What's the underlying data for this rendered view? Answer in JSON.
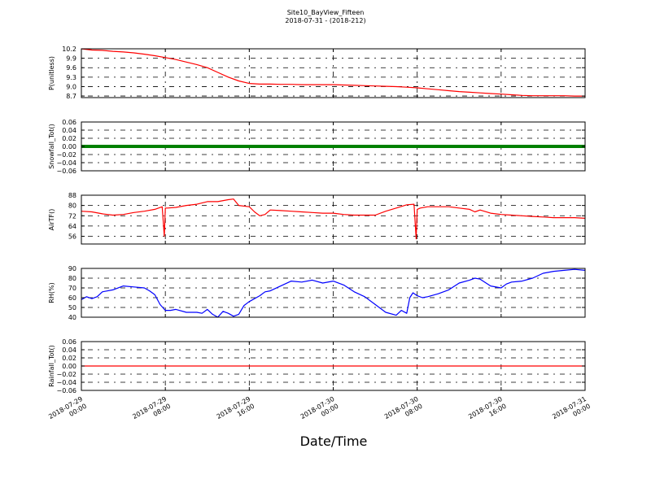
{
  "header": {
    "title": "Site10_BayView_Fifteen",
    "subtitle": "2018-07-31 - (2018-212)"
  },
  "xlabel": "Date/Time",
  "colors": {
    "red": "#ff0000",
    "green": "#008000",
    "blue": "#0000ff",
    "grid": "#000000"
  },
  "chart_data": [
    {
      "type": "line",
      "ylabel": "P(unitless)",
      "ylim": [
        8.65,
        10.2
      ],
      "yticks": [
        "10.2",
        "9.9",
        "9.6",
        "9.3",
        "9.0",
        "8.7"
      ],
      "ytick_values": [
        10.2,
        9.9,
        9.6,
        9.3,
        9.0,
        8.7
      ],
      "xlim": [
        0,
        48
      ],
      "xticks": [
        "2018-07-29\n00:00",
        "2018-07-29\n08:00",
        "2018-07-29\n16:00",
        "2018-07-30\n00:00",
        "2018-07-30\n08:00",
        "2018-07-30\n16:00",
        "2018-07-31\n00:00"
      ],
      "grid": true,
      "series": [
        {
          "color": "#ff0000",
          "x": [
            0,
            1,
            2,
            3,
            4,
            5,
            6,
            7,
            8,
            9,
            10,
            11,
            12,
            13,
            14,
            15,
            16,
            17,
            18,
            19,
            20,
            21,
            22,
            23,
            24,
            25,
            26,
            27,
            28,
            29,
            30,
            31,
            32,
            33,
            34,
            35,
            36,
            37,
            38,
            39,
            40,
            41,
            42,
            43,
            44,
            45,
            46,
            47,
            48
          ],
          "y": [
            10.2,
            10.16,
            10.15,
            10.12,
            10.1,
            10.07,
            10.03,
            9.98,
            9.92,
            9.86,
            9.78,
            9.7,
            9.6,
            9.45,
            9.3,
            9.18,
            9.1,
            9.08,
            9.08,
            9.07,
            9.07,
            9.06,
            9.06,
            9.06,
            9.06,
            9.05,
            9.04,
            9.03,
            9.02,
            9.01,
            9.0,
            8.98,
            8.96,
            8.93,
            8.9,
            8.87,
            8.84,
            8.82,
            8.8,
            8.78,
            8.76,
            8.74,
            8.72,
            8.71,
            8.71,
            8.71,
            8.71,
            8.7,
            8.7
          ]
        }
      ]
    },
    {
      "type": "line",
      "ylabel": "Snowfall_Tot()",
      "ylim": [
        -0.06,
        0.06
      ],
      "yticks": [
        "0.06",
        "0.04",
        "0.02",
        "0.00",
        "−0.02",
        "−0.04",
        "−0.06"
      ],
      "ytick_values": [
        0.06,
        0.04,
        0.02,
        0.0,
        -0.02,
        -0.04,
        -0.06
      ],
      "xlim": [
        0,
        48
      ],
      "grid": true,
      "series": [
        {
          "color": "#008000",
          "x": [
            0,
            48
          ],
          "y": [
            0,
            0
          ],
          "marker": "dense"
        }
      ]
    },
    {
      "type": "line",
      "ylabel": "AirTF()",
      "ylim": [
        50,
        88
      ],
      "yticks": [
        "88",
        "80",
        "72",
        "64",
        "56"
      ],
      "ytick_values": [
        88,
        80,
        72,
        64,
        56
      ],
      "xlim": [
        0,
        48
      ],
      "grid": true,
      "series": [
        {
          "color": "#ff0000",
          "x": [
            0,
            1,
            2,
            3,
            4,
            5,
            6,
            7,
            7.7,
            7.9,
            8.0,
            8.2,
            9,
            10,
            11,
            12,
            13,
            14,
            14.5,
            15,
            16,
            16.5,
            17,
            17.5,
            18,
            19,
            20,
            21,
            22,
            23,
            24,
            25,
            26,
            27,
            28,
            29,
            30,
            31,
            31.7,
            31.9,
            32.0,
            32.3,
            33,
            34,
            35,
            36,
            37,
            37.5,
            38,
            39,
            40,
            41,
            42,
            43,
            44,
            45,
            46,
            47,
            48
          ],
          "y": [
            75.5,
            75,
            73.5,
            72.5,
            73,
            74.5,
            75.5,
            77,
            79,
            56,
            78,
            78,
            78.5,
            80,
            81,
            83,
            83,
            84.5,
            85,
            80,
            79,
            75,
            72,
            73,
            76.5,
            76,
            75.5,
            75,
            74.5,
            74,
            74,
            73,
            72.5,
            72.5,
            72.5,
            75.5,
            78,
            80.5,
            81,
            54,
            77,
            78,
            79,
            79,
            79,
            78,
            77,
            75,
            76.5,
            74,
            73,
            72.5,
            72,
            71.5,
            71,
            70.5,
            70.5,
            70.5,
            70
          ]
        }
      ]
    },
    {
      "type": "line",
      "ylabel": "RH(%)",
      "ylim": [
        40,
        90
      ],
      "yticks": [
        "90",
        "80",
        "70",
        "60",
        "50",
        "40"
      ],
      "ytick_values": [
        90,
        80,
        70,
        60,
        50,
        40
      ],
      "xlim": [
        0,
        48
      ],
      "grid": true,
      "series": [
        {
          "color": "#0000ff",
          "x": [
            0,
            0.5,
            1,
            1.5,
            2,
            3,
            4,
            5,
            6,
            6.5,
            7,
            7.5,
            8,
            8.5,
            9,
            10,
            11,
            11.5,
            12,
            12.5,
            13,
            13.5,
            14,
            14.5,
            15,
            15.5,
            16,
            17,
            17.5,
            18,
            19,
            20,
            21,
            22,
            23,
            24,
            25,
            26,
            27,
            28,
            29,
            30,
            30.5,
            31,
            31.3,
            31.6,
            32,
            32.5,
            33,
            34,
            35,
            36,
            37,
            37.5,
            38,
            39,
            40,
            40.5,
            41,
            42,
            43,
            44,
            45,
            46,
            47,
            48
          ],
          "y": [
            58,
            61,
            59,
            61,
            66,
            68,
            72,
            71,
            70,
            67,
            63,
            53,
            47,
            47,
            48,
            45,
            45,
            44,
            48,
            43,
            40,
            46,
            44,
            41,
            43,
            52,
            56,
            62,
            66,
            67,
            72,
            77,
            76,
            78,
            75,
            77,
            73,
            66,
            61,
            53,
            45,
            42,
            47,
            44,
            60,
            65,
            62,
            60,
            61,
            64,
            68,
            75,
            78,
            80,
            79,
            72,
            70,
            74,
            76,
            77,
            80,
            85,
            87,
            88,
            89,
            88
          ]
        }
      ]
    },
    {
      "type": "line",
      "ylabel": "Rainfall_Tot()",
      "ylim": [
        -0.06,
        0.06
      ],
      "yticks": [
        "0.06",
        "0.04",
        "0.02",
        "0.00",
        "−0.02",
        "−0.04",
        "−0.06"
      ],
      "ytick_values": [
        0.06,
        0.04,
        0.02,
        0.0,
        -0.02,
        -0.04,
        -0.06
      ],
      "xlim": [
        0,
        48
      ],
      "xticks": [
        "2018-07-29\n00:00",
        "2018-07-29\n08:00",
        "2018-07-29\n16:00",
        "2018-07-30\n00:00",
        "2018-07-30\n08:00",
        "2018-07-30\n16:00",
        "2018-07-31\n00:00"
      ],
      "grid": true,
      "series": [
        {
          "color": "#ff0000",
          "x": [
            0,
            48
          ],
          "y": [
            0,
            0
          ]
        }
      ]
    }
  ]
}
